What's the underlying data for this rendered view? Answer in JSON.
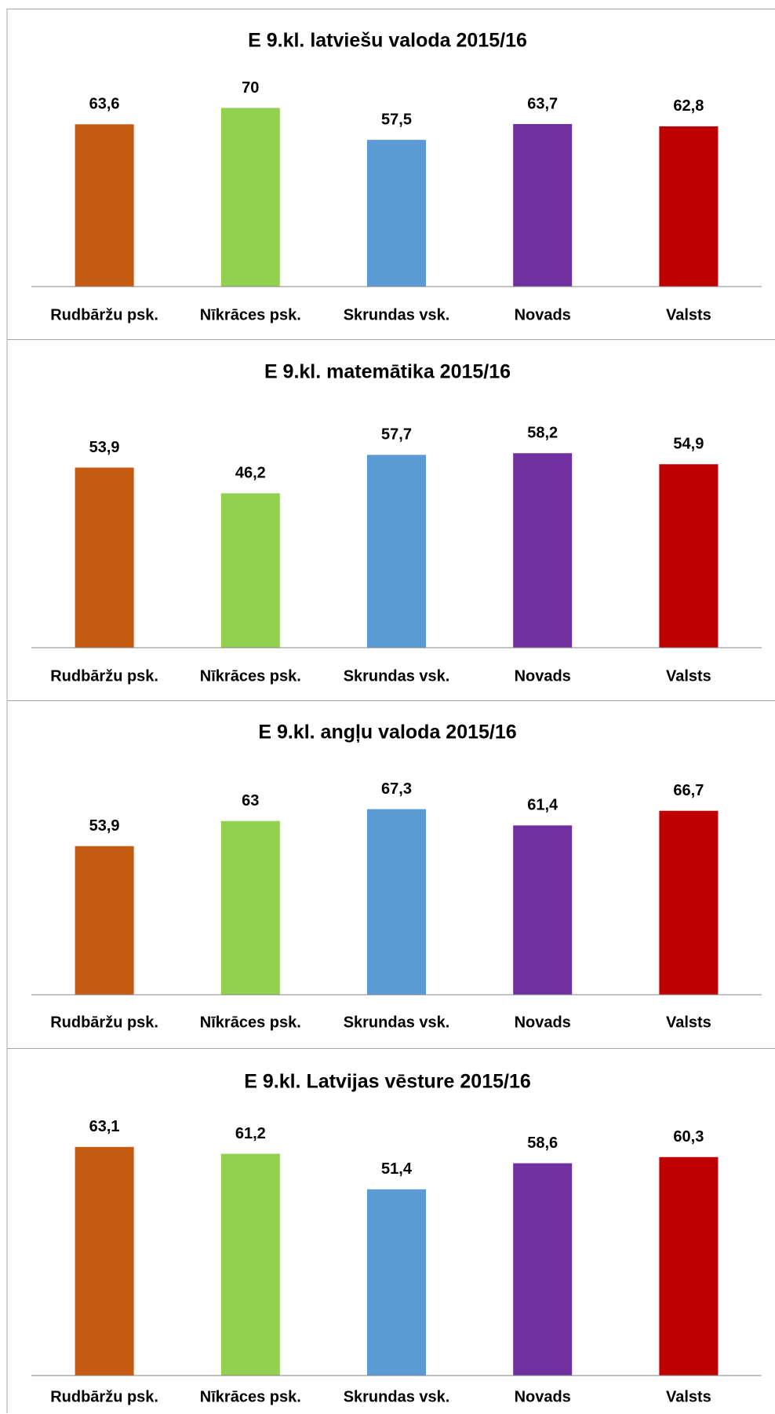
{
  "chart_data": [
    {
      "type": "bar",
      "title": "E 9.kl. latviešu valoda 2015/16",
      "categories": [
        "Rudbāržu psk.",
        "Nīkrāces psk.",
        "Skrundas vsk.",
        "Novads",
        "Valsts"
      ],
      "values": [
        63.6,
        70,
        57.5,
        63.7,
        62.8
      ],
      "value_labels": [
        "63,6",
        "70",
        "57,5",
        "63,7",
        "62,8"
      ],
      "colors": [
        "#c55a11",
        "#92d050",
        "#5b9bd5",
        "#7030a0",
        "#c00000"
      ],
      "ylim": [
        0,
        80
      ]
    },
    {
      "type": "bar",
      "title": "E 9.kl. matemātika 2015/16",
      "categories": [
        "Rudbāržu psk.",
        "Nīkrāces psk.",
        "Skrundas vsk.",
        "Novads",
        "Valsts"
      ],
      "values": [
        53.9,
        46.2,
        57.7,
        58.2,
        54.9
      ],
      "value_labels": [
        "53,9",
        "46,2",
        "57,7",
        "58,2",
        "54,9"
      ],
      "colors": [
        "#c55a11",
        "#92d050",
        "#5b9bd5",
        "#7030a0",
        "#c00000"
      ],
      "ylim": [
        0,
        70
      ]
    },
    {
      "type": "bar",
      "title": "E 9.kl. angļu valoda 2015/16",
      "categories": [
        "Rudbāržu psk.",
        "Nīkrāces psk.",
        "Skrundas vsk.",
        "Novads",
        "Valsts"
      ],
      "values": [
        53.9,
        63,
        67.3,
        61.4,
        66.7
      ],
      "value_labels": [
        "53,9",
        "63",
        "67,3",
        "61,4",
        "66,7"
      ],
      "colors": [
        "#c55a11",
        "#92d050",
        "#5b9bd5",
        "#7030a0",
        "#c00000"
      ],
      "ylim": [
        0,
        80
      ]
    },
    {
      "type": "bar",
      "title": "E 9.kl. Latvijas vēsture 2015/16",
      "categories": [
        "Rudbāržu psk.",
        "Nīkrāces psk.",
        "Skrundas vsk.",
        "Novads",
        "Valsts"
      ],
      "values": [
        63.1,
        61.2,
        51.4,
        58.6,
        60.3
      ],
      "value_labels": [
        "63,1",
        "61,2",
        "51,4",
        "58,6",
        "60,3"
      ],
      "colors": [
        "#c55a11",
        "#92d050",
        "#5b9bd5",
        "#7030a0",
        "#c00000"
      ],
      "ylim": [
        0,
        70
      ]
    }
  ]
}
